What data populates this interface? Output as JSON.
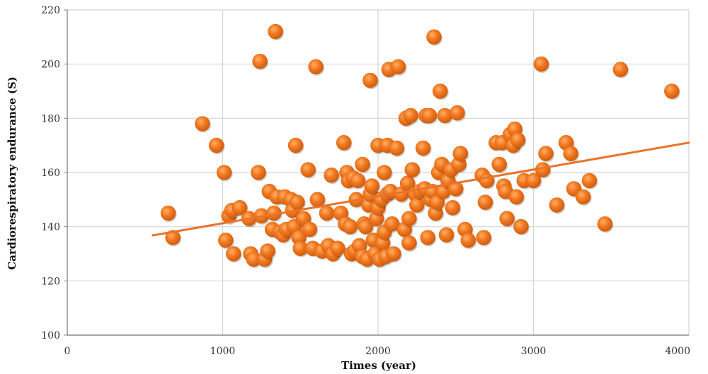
{
  "chart_data": {
    "type": "scatter",
    "title": "",
    "xlabel": "Times (year)",
    "ylabel": "Cardiorespiratory endurance (S)",
    "xlim": [
      0,
      4000
    ],
    "ylim": [
      100,
      220
    ],
    "x_ticks": [
      "0",
      "1000",
      "2000",
      "3000",
      "4000"
    ],
    "y_ticks": [
      "100",
      "120",
      "140",
      "160",
      "180",
      "200",
      "220"
    ],
    "grid": true,
    "legend": "none",
    "marker_color": "#F47A20",
    "trendline_color": "#E8732A",
    "trendline": {
      "x": [
        550,
        4000
      ],
      "y": [
        136.8,
        171
      ]
    },
    "points": [
      [
        650,
        145
      ],
      [
        680,
        136
      ],
      [
        870,
        178
      ],
      [
        960,
        170
      ],
      [
        1010,
        160
      ],
      [
        1020,
        135
      ],
      [
        1040,
        144
      ],
      [
        1060,
        146
      ],
      [
        1070,
        130
      ],
      [
        1110,
        147
      ],
      [
        1170,
        143
      ],
      [
        1180,
        130
      ],
      [
        1200,
        128
      ],
      [
        1230,
        160
      ],
      [
        1240,
        201
      ],
      [
        1250,
        144
      ],
      [
        1270,
        128
      ],
      [
        1290,
        131
      ],
      [
        1300,
        153
      ],
      [
        1320,
        139
      ],
      [
        1330,
        145
      ],
      [
        1340,
        212
      ],
      [
        1350,
        151
      ],
      [
        1370,
        138
      ],
      [
        1390,
        137
      ],
      [
        1400,
        151
      ],
      [
        1410,
        139
      ],
      [
        1440,
        150
      ],
      [
        1450,
        146
      ],
      [
        1460,
        140
      ],
      [
        1470,
        170
      ],
      [
        1480,
        149
      ],
      [
        1490,
        136
      ],
      [
        1500,
        132
      ],
      [
        1520,
        143
      ],
      [
        1550,
        161
      ],
      [
        1560,
        139
      ],
      [
        1580,
        132
      ],
      [
        1600,
        199
      ],
      [
        1610,
        150
      ],
      [
        1640,
        131
      ],
      [
        1670,
        145
      ],
      [
        1680,
        133
      ],
      [
        1700,
        159
      ],
      [
        1710,
        130
      ],
      [
        1740,
        132
      ],
      [
        1760,
        145
      ],
      [
        1780,
        171
      ],
      [
        1790,
        141
      ],
      [
        1800,
        160
      ],
      [
        1810,
        157
      ],
      [
        1820,
        140
      ],
      [
        1830,
        130
      ],
      [
        1840,
        158
      ],
      [
        1850,
        131
      ],
      [
        1860,
        150
      ],
      [
        1870,
        157
      ],
      [
        1880,
        133
      ],
      [
        1900,
        163
      ],
      [
        1900,
        129
      ],
      [
        1910,
        141
      ],
      [
        1920,
        140
      ],
      [
        1930,
        128
      ],
      [
        1940,
        148
      ],
      [
        1950,
        194
      ],
      [
        1950,
        152
      ],
      [
        1960,
        155
      ],
      [
        1970,
        135
      ],
      [
        1980,
        130
      ],
      [
        1990,
        143
      ],
      [
        2000,
        170
      ],
      [
        2000,
        147
      ],
      [
        2010,
        128
      ],
      [
        2020,
        150
      ],
      [
        2030,
        134
      ],
      [
        2040,
        160
      ],
      [
        2040,
        138
      ],
      [
        2050,
        129
      ],
      [
        2060,
        170
      ],
      [
        2060,
        152
      ],
      [
        2070,
        198
      ],
      [
        2080,
        153
      ],
      [
        2090,
        141
      ],
      [
        2100,
        130
      ],
      [
        2120,
        169
      ],
      [
        2130,
        199
      ],
      [
        2150,
        152
      ],
      [
        2170,
        139
      ],
      [
        2180,
        180
      ],
      [
        2190,
        156
      ],
      [
        2200,
        143
      ],
      [
        2200,
        134
      ],
      [
        2210,
        181
      ],
      [
        2220,
        161
      ],
      [
        2240,
        152
      ],
      [
        2250,
        148
      ],
      [
        2270,
        153
      ],
      [
        2290,
        169
      ],
      [
        2300,
        154
      ],
      [
        2310,
        181
      ],
      [
        2320,
        136
      ],
      [
        2330,
        181
      ],
      [
        2340,
        150
      ],
      [
        2350,
        153
      ],
      [
        2360,
        210
      ],
      [
        2370,
        145
      ],
      [
        2380,
        149
      ],
      [
        2390,
        160
      ],
      [
        2400,
        190
      ],
      [
        2410,
        163
      ],
      [
        2420,
        153
      ],
      [
        2430,
        181
      ],
      [
        2440,
        137
      ],
      [
        2450,
        157
      ],
      [
        2470,
        161
      ],
      [
        2480,
        147
      ],
      [
        2500,
        154
      ],
      [
        2510,
        182
      ],
      [
        2520,
        163
      ],
      [
        2530,
        167
      ],
      [
        2560,
        139
      ],
      [
        2580,
        135
      ],
      [
        2670,
        159
      ],
      [
        2680,
        136
      ],
      [
        2690,
        149
      ],
      [
        2700,
        157
      ],
      [
        2760,
        171
      ],
      [
        2780,
        163
      ],
      [
        2800,
        171
      ],
      [
        2810,
        155
      ],
      [
        2820,
        153
      ],
      [
        2830,
        143
      ],
      [
        2850,
        174
      ],
      [
        2870,
        170
      ],
      [
        2880,
        176
      ],
      [
        2890,
        151
      ],
      [
        2900,
        172
      ],
      [
        2920,
        140
      ],
      [
        2940,
        157
      ],
      [
        3000,
        157
      ],
      [
        3050,
        200
      ],
      [
        3060,
        161
      ],
      [
        3080,
        167
      ],
      [
        3150,
        148
      ],
      [
        3210,
        171
      ],
      [
        3240,
        167
      ],
      [
        3260,
        154
      ],
      [
        3320,
        151
      ],
      [
        3360,
        157
      ],
      [
        3460,
        141
      ],
      [
        3560,
        198
      ],
      [
        3890,
        190
      ]
    ]
  }
}
